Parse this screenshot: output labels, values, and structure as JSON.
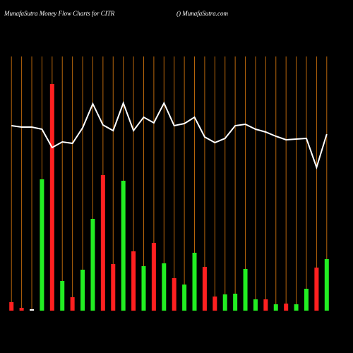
{
  "chart_data": {
    "type": "bar",
    "title": "MunafaSutra  Money Flow  Charts for CITR",
    "subtitle": "() MunafaSutra.com",
    "ylim": [
      0,
      360
    ],
    "grid": true,
    "grid_color": "#b8660b",
    "line_color": "#ffffff",
    "values": [
      12,
      4,
      2,
      186,
      321,
      42,
      19,
      58,
      130,
      192,
      66,
      184,
      84,
      63,
      96,
      67,
      46,
      37,
      82,
      62,
      20,
      23,
      24,
      59,
      16,
      16,
      9,
      10,
      9,
      31,
      61,
      73
    ],
    "colors": [
      "#ff2020",
      "#ff2020",
      "#ffffff",
      "#22ee22",
      "#ff2020",
      "#22ee22",
      "#ff2020",
      "#22ee22",
      "#22ee22",
      "#ff2020",
      "#ff2020",
      "#22ee22",
      "#ff2020",
      "#22ee22",
      "#ff2020",
      "#22ee22",
      "#ff2020",
      "#22ee22",
      "#22ee22",
      "#ff2020",
      "#ff2020",
      "#22ee22",
      "#22ee22",
      "#22ee22",
      "#22ee22",
      "#ff2020",
      "#22ee22",
      "#ff2020",
      "#22ee22",
      "#22ee22",
      "#ff2020",
      "#22ee22"
    ],
    "line_values": [
      262,
      260,
      260,
      257,
      231,
      239,
      237,
      259,
      293,
      263,
      255,
      294,
      255,
      274,
      266,
      294,
      262,
      265,
      274,
      246,
      238,
      244,
      262,
      264,
      257,
      253,
      247,
      242,
      243,
      244,
      203,
      250
    ]
  }
}
